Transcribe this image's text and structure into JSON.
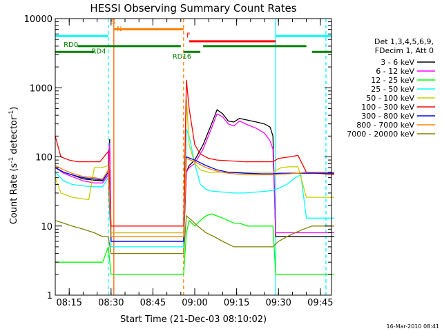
{
  "chart_data": {
    "type": "line",
    "title": "HESSI Observing Summary Count Rates",
    "xlabel": "Start Time (21-Dec-03 08:10:02)",
    "ylabel": "Count Rate (s",
    "ylabel_sup1": "-1",
    "ylabel_mid": " detector",
    "ylabel_sup2": "-1",
    "ylabel_end": ")",
    "y_scale": "log",
    "xlim": [
      "08:10",
      "09:49"
    ],
    "ylim": [
      1,
      10000
    ],
    "x_ticks": [
      "08:15",
      "08:30",
      "08:45",
      "09:00",
      "09:15",
      "09:30",
      "09:45"
    ],
    "y_ticks": [
      {
        "value": 1,
        "label": "1"
      },
      {
        "value": 10,
        "label": "10"
      },
      {
        "value": 100,
        "label": "100"
      },
      {
        "value": 1000,
        "label": "1000"
      },
      {
        "value": 10000,
        "label": "10000"
      }
    ],
    "legend_header": [
      "Det 1,3,4,5,6,9,",
      "FDecim 1, Att 0"
    ],
    "legend_position": "right",
    "timestamp": "16-Mar-2010 08:41",
    "series": [
      {
        "name": "3 - 6 keV",
        "color": "#000000",
        "points": [
          [
            "08:10",
            70
          ],
          [
            "08:13",
            60
          ],
          [
            "08:16",
            55
          ],
          [
            "08:20",
            48
          ],
          [
            "08:24",
            46
          ],
          [
            "08:27",
            45
          ],
          [
            "08:29",
            60
          ],
          [
            "08:29.5",
            180
          ],
          [
            "08:30",
            6
          ],
          [
            "08:56",
            6
          ],
          [
            "08:57",
            60
          ],
          [
            "08:58",
            75
          ],
          [
            "09:00",
            90
          ],
          [
            "09:03",
            150
          ],
          [
            "09:06",
            300
          ],
          [
            "09:08",
            480
          ],
          [
            "09:10",
            420
          ],
          [
            "09:12",
            330
          ],
          [
            "09:14",
            320
          ],
          [
            "09:16",
            360
          ],
          [
            "09:19",
            340
          ],
          [
            "09:22",
            320
          ],
          [
            "09:25",
            300
          ],
          [
            "09:27",
            270
          ],
          [
            "09:28",
            200
          ],
          [
            "09:29",
            7
          ],
          [
            "09:50",
            7
          ]
        ]
      },
      {
        "name": "6 - 12 keV",
        "color": "#ff00ff",
        "points": [
          [
            "08:10",
            70
          ],
          [
            "08:13",
            58
          ],
          [
            "08:16",
            52
          ],
          [
            "08:20",
            45
          ],
          [
            "08:24",
            42
          ],
          [
            "08:27",
            42
          ],
          [
            "08:29",
            55
          ],
          [
            "08:29.5",
            160
          ],
          [
            "08:30",
            8
          ],
          [
            "08:56",
            8
          ],
          [
            "08:57",
            60
          ],
          [
            "08:58",
            70
          ],
          [
            "09:00",
            80
          ],
          [
            "09:03",
            130
          ],
          [
            "09:06",
            260
          ],
          [
            "09:08",
            420
          ],
          [
            "09:10",
            380
          ],
          [
            "09:12",
            300
          ],
          [
            "09:14",
            280
          ],
          [
            "09:16",
            330
          ],
          [
            "09:19",
            290
          ],
          [
            "09:22",
            260
          ],
          [
            "09:25",
            220
          ],
          [
            "09:27",
            170
          ],
          [
            "09:28",
            130
          ],
          [
            "09:29",
            8
          ],
          [
            "09:33",
            8
          ],
          [
            "09:50",
            8
          ]
        ]
      },
      {
        "name": "12 - 25 keV",
        "color": "#00ff00",
        "points": [
          [
            "08:10",
            3
          ],
          [
            "08:16",
            3
          ],
          [
            "08:20",
            3
          ],
          [
            "08:24",
            3
          ],
          [
            "08:27",
            3
          ],
          [
            "08:29",
            5
          ],
          [
            "08:30",
            2
          ],
          [
            "08:56",
            2
          ],
          [
            "08:57",
            8
          ],
          [
            "08:58",
            12
          ],
          [
            "09:00",
            10
          ],
          [
            "09:02",
            12
          ],
          [
            "09:04",
            14
          ],
          [
            "09:06",
            15
          ],
          [
            "09:08",
            14
          ],
          [
            "09:10",
            13
          ],
          [
            "09:12",
            12
          ],
          [
            "09:14",
            11
          ],
          [
            "09:16",
            11
          ],
          [
            "09:19",
            10
          ],
          [
            "09:22",
            10
          ],
          [
            "09:25",
            10
          ],
          [
            "09:28",
            10
          ],
          [
            "09:29",
            2
          ],
          [
            "09:50",
            2
          ]
        ]
      },
      {
        "name": "25 - 50 keV",
        "color": "#00ffff",
        "points": [
          [
            "08:10",
            60
          ],
          [
            "08:13",
            45
          ],
          [
            "08:16",
            40
          ],
          [
            "08:20",
            38
          ],
          [
            "08:24",
            37
          ],
          [
            "08:27",
            37
          ],
          [
            "08:29",
            50
          ],
          [
            "08:30",
            5
          ],
          [
            "08:56",
            5
          ],
          [
            "08:57",
            250
          ],
          [
            "08:58",
            200
          ],
          [
            "09:00",
            80
          ],
          [
            "09:02",
            40
          ],
          [
            "09:04",
            34
          ],
          [
            "09:06",
            32
          ],
          [
            "09:10",
            31
          ],
          [
            "09:14",
            30
          ],
          [
            "09:18",
            30
          ],
          [
            "09:22",
            31
          ],
          [
            "09:26",
            32
          ],
          [
            "09:28",
            33
          ],
          [
            "09:30",
            35
          ],
          [
            "09:33",
            40
          ],
          [
            "09:36",
            50
          ],
          [
            "09:38",
            55
          ],
          [
            "09:40",
            13
          ],
          [
            "09:50",
            13
          ]
        ]
      },
      {
        "name": "50 - 100 keV",
        "color": "#cccc00",
        "points": [
          [
            "08:10",
            50
          ],
          [
            "08:12",
            30
          ],
          [
            "08:14",
            28
          ],
          [
            "08:16",
            26
          ],
          [
            "08:19",
            25
          ],
          [
            "08:22",
            24
          ],
          [
            "08:24",
            70
          ],
          [
            "08:27",
            70
          ],
          [
            "08:29",
            75
          ],
          [
            "08:30",
            8
          ],
          [
            "08:56",
            8
          ],
          [
            "08:57",
            700
          ],
          [
            "08:58",
            150
          ],
          [
            "09:00",
            80
          ],
          [
            "09:02",
            65
          ],
          [
            "09:05",
            60
          ],
          [
            "09:08",
            60
          ],
          [
            "09:12",
            60
          ],
          [
            "09:18",
            60
          ],
          [
            "09:24",
            60
          ],
          [
            "09:28",
            60
          ],
          [
            "09:31",
            70
          ],
          [
            "09:34",
            72
          ],
          [
            "09:37",
            72
          ],
          [
            "09:40",
            26
          ],
          [
            "09:50",
            26
          ]
        ]
      },
      {
        "name": "100 - 300 keV",
        "color": "#ff0000",
        "points": [
          [
            "08:10",
            200
          ],
          [
            "08:12",
            100
          ],
          [
            "08:15",
            90
          ],
          [
            "08:18",
            85
          ],
          [
            "08:22",
            85
          ],
          [
            "08:26",
            85
          ],
          [
            "08:29",
            120
          ],
          [
            "08:30",
            10
          ],
          [
            "08:56",
            10
          ],
          [
            "08:57",
            1300
          ],
          [
            "08:58",
            500
          ],
          [
            "09:00",
            150
          ],
          [
            "09:02",
            110
          ],
          [
            "09:05",
            95
          ],
          [
            "09:08",
            90
          ],
          [
            "09:12",
            88
          ],
          [
            "09:18",
            85
          ],
          [
            "09:24",
            85
          ],
          [
            "09:28",
            85
          ],
          [
            "09:30",
            95
          ],
          [
            "09:34",
            100
          ],
          [
            "09:37",
            105
          ],
          [
            "09:40",
            60
          ],
          [
            "09:50",
            55
          ]
        ]
      },
      {
        "name": "300 - 800 keV",
        "color": "#0000ff",
        "points": [
          [
            "08:10",
            70
          ],
          [
            "08:13",
            60
          ],
          [
            "08:16",
            55
          ],
          [
            "08:20",
            50
          ],
          [
            "08:24",
            48
          ],
          [
            "08:27",
            46
          ],
          [
            "08:29",
            60
          ],
          [
            "08:30",
            6
          ],
          [
            "08:56",
            6
          ],
          [
            "08:57",
            100
          ],
          [
            "09:00",
            90
          ],
          [
            "09:04",
            75
          ],
          [
            "09:08",
            65
          ],
          [
            "09:12",
            60
          ],
          [
            "09:18",
            58
          ],
          [
            "09:24",
            57
          ],
          [
            "09:28",
            57
          ],
          [
            "09:30",
            58
          ],
          [
            "09:34",
            58
          ],
          [
            "09:37",
            58
          ],
          [
            "09:40",
            58
          ],
          [
            "09:50",
            58
          ]
        ]
      },
      {
        "name": "800 - 7000 keV",
        "color": "#ff8000",
        "points": [
          [
            "08:10",
            75
          ],
          [
            "08:13",
            65
          ],
          [
            "08:16",
            58
          ],
          [
            "08:20",
            52
          ],
          [
            "08:24",
            50
          ],
          [
            "08:27",
            48
          ],
          [
            "08:29",
            65
          ],
          [
            "08:30",
            7
          ],
          [
            "08:56",
            7
          ],
          [
            "08:57",
            95
          ],
          [
            "09:00",
            85
          ],
          [
            "09:04",
            70
          ],
          [
            "09:08",
            62
          ],
          [
            "09:12",
            58
          ],
          [
            "09:18",
            55
          ],
          [
            "09:24",
            55
          ],
          [
            "09:28",
            55
          ],
          [
            "09:30",
            56
          ],
          [
            "09:34",
            57
          ],
          [
            "09:37",
            58
          ],
          [
            "09:40",
            60
          ],
          [
            "09:50",
            60
          ]
        ]
      },
      {
        "name": "7000 - 20000 keV",
        "color": "#808000",
        "points": [
          [
            "08:10",
            12
          ],
          [
            "08:13",
            11
          ],
          [
            "08:16",
            10
          ],
          [
            "08:20",
            9
          ],
          [
            "08:24",
            8
          ],
          [
            "08:27",
            7
          ],
          [
            "08:29",
            7
          ],
          [
            "08:30",
            4
          ],
          [
            "08:56",
            4
          ],
          [
            "08:57",
            14
          ],
          [
            "08:59",
            12
          ],
          [
            "09:01",
            10
          ],
          [
            "09:04",
            8
          ],
          [
            "09:07",
            7
          ],
          [
            "09:10",
            6
          ],
          [
            "09:14",
            5
          ],
          [
            "09:18",
            5
          ],
          [
            "09:22",
            5
          ],
          [
            "09:25",
            5
          ],
          [
            "09:28",
            5
          ],
          [
            "09:30",
            6
          ],
          [
            "09:33",
            7
          ],
          [
            "09:36",
            8
          ],
          [
            "09:39",
            9
          ],
          [
            "09:42",
            10
          ],
          [
            "09:46",
            10
          ],
          [
            "09:50",
            10
          ]
        ]
      }
    ],
    "event_lines": [
      {
        "time": "08:29",
        "color": "#00ffff",
        "dashed": true
      },
      {
        "time": "08:31",
        "color": "#ff6000",
        "dashed": false
      },
      {
        "time": "08:56",
        "color": "#ff8000",
        "dashed": true
      },
      {
        "time": "09:29",
        "color": "#00ffff",
        "dashed": false
      },
      {
        "time": "09:47",
        "color": "#00ffff",
        "dashed": true
      }
    ],
    "flag_bars": [
      {
        "start": "08:10",
        "end": "08:29",
        "y": 5600,
        "color": "#00ffff"
      },
      {
        "start": "08:31",
        "end": "08:56",
        "y": 7000,
        "color": "#ff8000"
      },
      {
        "start": "08:58",
        "end": "09:29",
        "y": 4700,
        "color": "#ff0000"
      },
      {
        "start": "09:29",
        "end": "09:49",
        "y": 5600,
        "color": "#00ffff"
      },
      {
        "start": "08:10",
        "end": "08:24",
        "y": 3300,
        "color": "#008000"
      },
      {
        "start": "08:18",
        "end": "08:55",
        "y": 4000,
        "color": "#008000"
      },
      {
        "start": "08:56",
        "end": "09:02",
        "y": 3300,
        "color": "#008000"
      },
      {
        "start": "09:03",
        "end": "09:40",
        "y": 4000,
        "color": "#008000"
      },
      {
        "start": "09:42",
        "end": "09:49",
        "y": 3300,
        "color": "#008000"
      }
    ],
    "annotations": [
      {
        "text": "S",
        "time": "08:30",
        "y": 8300,
        "color": "#ff8000"
      },
      {
        "text": "N",
        "time": "08:32",
        "y": 6600,
        "color": "#ff8000"
      },
      {
        "text": "F",
        "time": "08:57",
        "y": 5300,
        "color": "#ff0000"
      },
      {
        "text": "RD0",
        "time": "08:13",
        "y": 3900,
        "color": "#008000"
      },
      {
        "text": "RD4",
        "time": "08:23",
        "y": 3150,
        "color": "#008000"
      },
      {
        "text": "RD16",
        "time": "08:52",
        "y": 2650,
        "color": "#008000"
      }
    ]
  }
}
